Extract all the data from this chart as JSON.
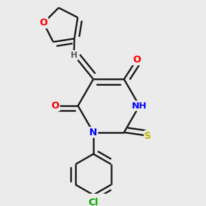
{
  "bg_color": "#ebebeb",
  "bond_color": "#1a1a1a",
  "bond_width": 1.8,
  "atom_colors": {
    "O": "#ff0000",
    "N": "#0000ff",
    "S": "#b8b800",
    "Cl": "#00aa00",
    "H": "#555555",
    "C": "#1a1a1a"
  },
  "font_size": 10,
  "fig_width": 3.0,
  "fig_height": 3.0,
  "dpi": 100
}
